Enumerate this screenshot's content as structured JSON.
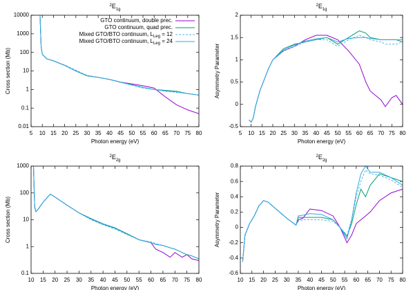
{
  "chart_data": [
    {
      "type": "line",
      "title": [
        "2",
        "E",
        "1g"
      ],
      "xlabel": "Photon energy (eV)",
      "ylabel": "Cross section (Mb)",
      "yscale": "log",
      "legend": "upper right",
      "x": [
        9,
        9.5,
        10,
        12,
        15,
        20,
        25,
        30,
        35,
        40,
        45,
        50,
        55,
        60,
        65,
        70,
        75,
        80
      ],
      "xlim": [
        5,
        80
      ],
      "xticks": [
        5,
        10,
        15,
        20,
        25,
        30,
        35,
        40,
        45,
        50,
        55,
        60,
        65,
        70,
        75,
        80
      ],
      "ylim": [
        0.01,
        10000
      ],
      "yticks": [
        0.01,
        0.1,
        1,
        10,
        100,
        1000,
        10000
      ],
      "series": [
        {
          "name": [
            "GTO continuum, double prec."
          ],
          "color": "#9400d3",
          "dash": false,
          "values": [
            10000,
            200,
            80,
            45,
            35,
            20,
            10,
            5.5,
            4.5,
            3.5,
            2.5,
            2,
            1.6,
            1.2,
            0.4,
            0.15,
            0.08,
            0.05
          ]
        },
        {
          "name": [
            "GTO continuum, quad prec."
          ],
          "color": "#009e73",
          "dash": false,
          "values": [
            10000,
            200,
            80,
            45,
            35,
            20,
            10,
            5.5,
            4.5,
            3.5,
            2.5,
            1.8,
            1.3,
            1.0,
            0.9,
            0.8,
            0.6,
            0.5
          ]
        },
        {
          "name": [
            "Mixed GTO/BTO continuum, L",
            "Leg",
            " = 12"
          ],
          "color": "#56b4e9",
          "dash": true,
          "values": [
            10000,
            200,
            80,
            45,
            35,
            21,
            11,
            5.8,
            4.6,
            3.5,
            2.4,
            1.7,
            1.2,
            1.0,
            0.8,
            0.7,
            0.6,
            0.5
          ]
        },
        {
          "name": [
            "Mixed GTO/BTO continuum, L",
            "Leg",
            " = 24"
          ],
          "color": "#35a7e0",
          "dash": false,
          "values": [
            10000,
            200,
            80,
            45,
            35,
            20,
            10,
            5.6,
            4.5,
            3.5,
            2.5,
            1.8,
            1.3,
            1.0,
            0.85,
            0.75,
            0.6,
            0.5
          ]
        }
      ]
    },
    {
      "type": "line",
      "title": [
        "2",
        "E",
        "1g"
      ],
      "xlabel": "Photon energy (eV)",
      "ylabel": "Asymmetry Parameter",
      "yscale": "linear",
      "x": [
        9,
        10,
        11,
        12,
        14,
        16,
        18,
        20,
        25,
        30,
        35,
        40,
        45,
        50,
        55,
        60,
        63,
        65,
        70,
        72,
        75,
        77,
        80
      ],
      "xlim": [
        5,
        80
      ],
      "xticks": [
        5,
        10,
        15,
        20,
        25,
        30,
        35,
        40,
        45,
        50,
        55,
        60,
        65,
        70,
        75,
        80
      ],
      "ylim": [
        -0.5,
        2
      ],
      "yticks": [
        -0.5,
        0,
        0.5,
        1,
        1.5,
        2
      ],
      "series": [
        {
          "color": "#9400d3",
          "dash": false,
          "values": [
            -0.35,
            -0.4,
            -0.3,
            -0.05,
            0.3,
            0.55,
            0.8,
            1.0,
            1.2,
            1.3,
            1.45,
            1.55,
            1.55,
            1.45,
            1.2,
            0.9,
            0.5,
            0.3,
            0.1,
            -0.05,
            0.15,
            0.2,
            0
          ]
        },
        {
          "color": "#009e73",
          "dash": false,
          "values": [
            -0.35,
            -0.4,
            -0.3,
            -0.05,
            0.3,
            0.55,
            0.8,
            1.0,
            1.25,
            1.35,
            1.4,
            1.45,
            1.5,
            1.35,
            1.5,
            1.65,
            1.6,
            1.5,
            1.45,
            1.45,
            1.45,
            1.45,
            1.4
          ]
        },
        {
          "color": "#56b4e9",
          "dash": true,
          "values": [
            -0.35,
            -0.4,
            -0.3,
            -0.05,
            0.3,
            0.55,
            0.8,
            1.0,
            1.2,
            1.3,
            1.4,
            1.45,
            1.45,
            1.3,
            1.45,
            1.55,
            1.5,
            1.45,
            1.4,
            1.35,
            1.35,
            1.35,
            1.4
          ]
        },
        {
          "color": "#35a7e0",
          "dash": false,
          "values": [
            -0.35,
            -0.4,
            -0.3,
            -0.05,
            0.3,
            0.55,
            0.8,
            1.0,
            1.22,
            1.33,
            1.42,
            1.47,
            1.5,
            1.4,
            1.48,
            1.5,
            1.5,
            1.48,
            1.45,
            1.45,
            1.45,
            1.45,
            1.45
          ]
        }
      ]
    },
    {
      "type": "line",
      "title": [
        "2",
        "E",
        "2g"
      ],
      "xlabel": "Photon energy (eV)",
      "ylabel": "Cross section (Mb)",
      "yscale": "log",
      "x": [
        11,
        11.5,
        12,
        13,
        15,
        18,
        20,
        25,
        30,
        35,
        40,
        45,
        50,
        55,
        60,
        62,
        65,
        68,
        70,
        73,
        75,
        77,
        80
      ],
      "xlim": [
        10,
        80
      ],
      "xticks": [
        10,
        15,
        20,
        25,
        30,
        35,
        40,
        45,
        50,
        55,
        60,
        65,
        70,
        75,
        80
      ],
      "ylim": [
        0.1,
        1000
      ],
      "yticks": [
        0.1,
        1,
        10,
        100,
        1000
      ],
      "series": [
        {
          "color": "#9400d3",
          "dash": false,
          "values": [
            1000,
            30,
            20,
            25,
            45,
            90,
            70,
            35,
            18,
            11,
            7,
            5,
            3,
            1.8,
            1.4,
            0.8,
            0.6,
            0.4,
            0.6,
            0.4,
            0.5,
            0.35,
            0.3
          ]
        },
        {
          "color": "#009e73",
          "dash": false,
          "values": [
            1000,
            30,
            20,
            25,
            45,
            90,
            70,
            35,
            18,
            11,
            7,
            5,
            3,
            1.8,
            1.4,
            1.2,
            1.1,
            0.9,
            0.8,
            0.6,
            0.5,
            0.45,
            0.35
          ]
        },
        {
          "color": "#56b4e9",
          "dash": true,
          "values": [
            1000,
            30,
            20,
            25,
            45,
            90,
            70,
            35,
            18,
            10,
            6.5,
            4.5,
            2.8,
            1.8,
            1.5,
            1.3,
            1.1,
            0.9,
            0.8,
            0.6,
            0.5,
            0.45,
            0.35
          ]
        },
        {
          "color": "#35a7e0",
          "dash": false,
          "values": [
            1000,
            30,
            20,
            25,
            45,
            90,
            70,
            35,
            18,
            10.5,
            6.8,
            4.8,
            2.9,
            1.8,
            1.4,
            1.2,
            1.1,
            0.9,
            0.8,
            0.6,
            0.5,
            0.45,
            0.35
          ]
        }
      ]
    },
    {
      "type": "line",
      "title": [
        "2",
        "E",
        "2g"
      ],
      "xlabel": "Photon energy (eV)",
      "ylabel": "Asymmetry Parameter",
      "yscale": "linear",
      "x": [
        11,
        12,
        14,
        16,
        18,
        20,
        22,
        25,
        30,
        34,
        35,
        37,
        40,
        45,
        50,
        53,
        56,
        58,
        60,
        62,
        64,
        66,
        70,
        75,
        80
      ],
      "xlim": [
        10,
        80
      ],
      "xticks": [
        10,
        15,
        20,
        25,
        30,
        35,
        40,
        45,
        50,
        55,
        60,
        65,
        70,
        75,
        80
      ],
      "ylim": [
        -0.6,
        0.8
      ],
      "yticks": [
        -0.6,
        -0.4,
        -0.2,
        0,
        0.2,
        0.4,
        0.6,
        0.8
      ],
      "series": [
        {
          "color": "#9400d3",
          "dash": false,
          "values": [
            -0.45,
            -0.1,
            0.05,
            0.15,
            0.28,
            0.35,
            0.33,
            0.25,
            0.12,
            0.03,
            0.1,
            0.12,
            0.24,
            0.22,
            0.15,
            0,
            -0.2,
            -0.1,
            0.05,
            0.1,
            0.15,
            0.2,
            0.35,
            0.45,
            0.5
          ]
        },
        {
          "color": "#009e73",
          "dash": false,
          "values": [
            -0.45,
            -0.1,
            0.05,
            0.15,
            0.28,
            0.35,
            0.33,
            0.25,
            0.12,
            0.03,
            0.13,
            0.13,
            0.13,
            0.13,
            0.1,
            0,
            -0.12,
            0.05,
            0.3,
            0.5,
            0.4,
            0.55,
            0.7,
            0.65,
            0.6
          ]
        },
        {
          "color": "#56b4e9",
          "dash": true,
          "values": [
            -0.45,
            -0.1,
            0.05,
            0.15,
            0.28,
            0.35,
            0.33,
            0.25,
            0.12,
            0.03,
            0.08,
            0.1,
            0.1,
            0.1,
            0.08,
            0,
            -0.1,
            0.1,
            0.4,
            0.6,
            0.75,
            0.7,
            0.68,
            0.62,
            0.52
          ]
        },
        {
          "color": "#35a7e0",
          "dash": false,
          "values": [
            -0.45,
            -0.1,
            0.05,
            0.15,
            0.28,
            0.35,
            0.33,
            0.25,
            0.12,
            0.03,
            0.15,
            0.16,
            0.18,
            0.17,
            0.1,
            0,
            -0.15,
            0.1,
            0.45,
            0.7,
            0.8,
            0.72,
            0.72,
            0.65,
            0.55
          ]
        }
      ]
    }
  ]
}
